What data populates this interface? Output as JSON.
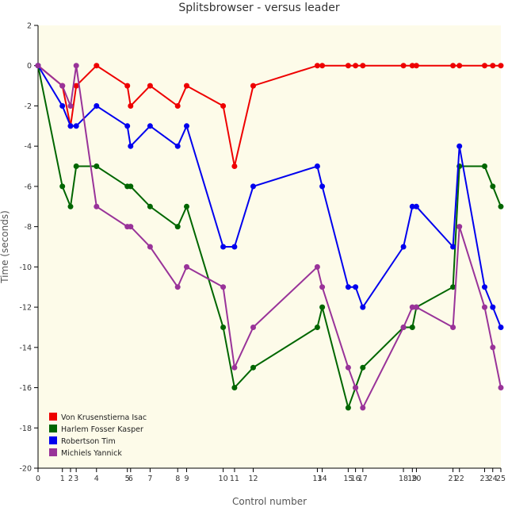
{
  "chart_data": {
    "type": "line",
    "title": "Splitsbrowser - versus leader",
    "xlabel": "Control number",
    "ylabel": "Time (seconds)",
    "ylim": [
      -20,
      2
    ],
    "yticks": [
      2,
      0,
      -2,
      -4,
      -6,
      -8,
      -10,
      -12,
      -14,
      -16,
      -18,
      -20
    ],
    "grid": false,
    "legend_position": "bottom-left",
    "background_color": "#fdfbe9",
    "x": [
      0,
      1,
      2,
      3,
      4,
      5,
      6,
      7,
      8,
      9,
      10,
      11,
      12,
      13,
      14,
      15,
      16,
      17,
      18,
      19,
      20,
      21,
      22,
      23,
      24,
      25
    ],
    "x_tick_labels": [
      "0",
      "1",
      "2",
      "3",
      "4",
      "5",
      "6",
      "7",
      "8",
      "9",
      "10",
      "11",
      "12",
      "13",
      "14",
      "15",
      "16",
      "17",
      "18",
      "19",
      "20",
      "21",
      "22",
      "23",
      "24",
      "25"
    ],
    "x_cumulative_time": [
      0,
      30,
      40,
      47,
      72,
      110,
      114,
      138,
      172,
      183,
      228,
      242,
      265,
      344,
      350,
      382,
      391,
      400,
      450,
      461,
      466,
      511,
      519,
      550,
      560,
      570
    ],
    "series": [
      {
        "name": "Von Krusenstierna Isac",
        "color": "#ee0000",
        "values": [
          0,
          -1,
          -3,
          -1,
          0,
          -1,
          -2,
          -1,
          -2,
          -1,
          -2,
          -5,
          -1,
          0,
          0,
          0,
          0,
          0,
          0,
          0,
          0,
          0,
          0,
          0,
          0,
          0
        ]
      },
      {
        "name": "Harlem Fosser Kasper",
        "color": "#006600",
        "values": [
          0,
          -6,
          -7,
          -5,
          -5,
          -6,
          -6,
          -7,
          -8,
          -7,
          -13,
          -16,
          -15,
          -13,
          -12,
          -17,
          -16,
          -15,
          -13,
          -13,
          -12,
          -11,
          -5,
          -5,
          -6,
          -7
        ]
      },
      {
        "name": "Robertson Tim",
        "color": "#0000ee",
        "values": [
          0,
          -2,
          -3,
          -3,
          -2,
          -3,
          -4,
          -3,
          -4,
          -3,
          -9,
          -9,
          -6,
          -5,
          -6,
          -11,
          -11,
          -12,
          -9,
          -7,
          -7,
          -9,
          -4,
          -11,
          -12,
          -13
        ]
      },
      {
        "name": "Michiels Yannick",
        "color": "#993399",
        "values": [
          0,
          -1,
          -2,
          0,
          -7,
          -8,
          -8,
          -9,
          -11,
          -10,
          -11,
          -15,
          -13,
          -10,
          -11,
          -15,
          -16,
          -17,
          -13,
          -12,
          -12,
          -13,
          -8,
          -12,
          -14,
          -16
        ]
      }
    ]
  }
}
